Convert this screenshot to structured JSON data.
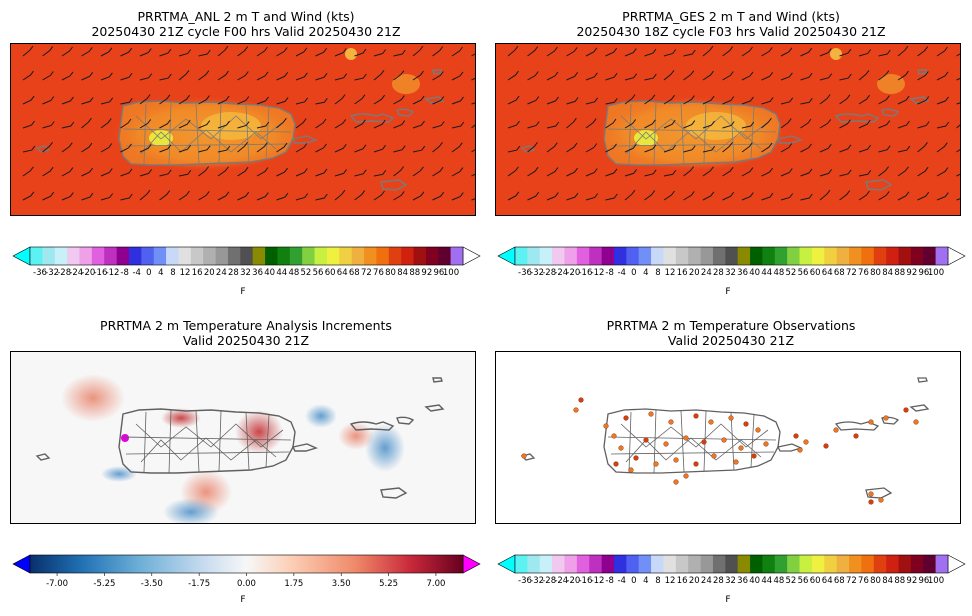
{
  "panels": [
    {
      "title_line1": "PRRTMA_ANL 2 m T and Wind (kts)",
      "title_line2": "20250430 21Z cycle F00 hrs Valid 20250430 21Z"
    },
    {
      "title_line1": "PRRTMA_GES 2 m T and Wind (kts)",
      "title_line2": "20250430 18Z cycle F03 hrs Valid 20250430 21Z"
    },
    {
      "title_line1": "PRRTMA 2 m Temperature Analysis Increments",
      "title_line2": "Valid 20250430 21Z"
    },
    {
      "title_line1": "PRRTMA 2 m Temperature Observations",
      "title_line2": "Valid 20250430 21Z"
    }
  ],
  "temp_colorbar": {
    "unit": "F",
    "ticks": [
      "-36",
      "-32",
      "-28",
      "-24",
      "-20",
      "-16",
      "-12",
      "-8",
      "-4",
      "0",
      "4",
      "8",
      "12",
      "16",
      "20",
      "24",
      "28",
      "32",
      "36",
      "40",
      "44",
      "48",
      "52",
      "56",
      "60",
      "64",
      "68",
      "72",
      "76",
      "80",
      "84",
      "88",
      "92",
      "96",
      "100"
    ],
    "colors": [
      "#5cf2f2",
      "#9ee8f0",
      "#c8f0f8",
      "#f0c8f0",
      "#f0a0e8",
      "#e060e0",
      "#c030c0",
      "#900090",
      "#3030e0",
      "#5060f0",
      "#7090f8",
      "#c8d8f8",
      "#e0e0e0",
      "#c8c8c8",
      "#b0b0b0",
      "#989898",
      "#707070",
      "#505050",
      "#8a8a00",
      "#006000",
      "#108010",
      "#30a030",
      "#80d040",
      "#c8f040",
      "#f0f040",
      "#f0d040",
      "#f0b040",
      "#f09020",
      "#f07010",
      "#e04010",
      "#d02010",
      "#a01010",
      "#800020",
      "#600030",
      "#a070f0"
    ],
    "under_color": "#00ffff",
    "over_color": "#ffffff"
  },
  "incr_colorbar": {
    "unit": "F",
    "ticks": [
      "-7.00",
      "-5.25",
      "-3.50",
      "-1.75",
      "0.00",
      "1.75",
      "3.50",
      "5.25",
      "7.00"
    ],
    "under_color": "#0000ff",
    "over_color": "#ff00ff",
    "range": [
      -8,
      8
    ]
  },
  "map_colors": {
    "background": "#e8421a",
    "warm": "#f08a28",
    "hot": "#f5c042",
    "hottest": "#e8f040",
    "coast": "#7a7a7a"
  }
}
